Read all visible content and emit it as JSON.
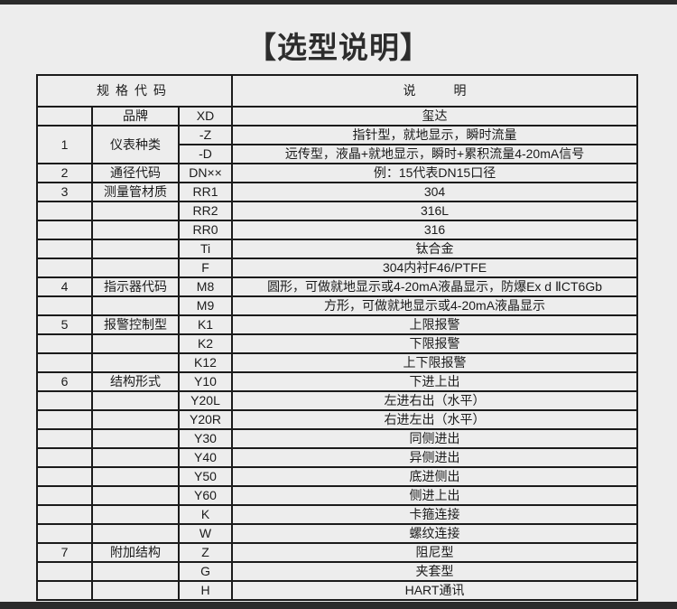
{
  "page": {
    "title": "【选型说明】"
  },
  "colors": {
    "background": "#ededed",
    "border": "#1b1b1b",
    "edge_bar": "#2b2b2b",
    "text": "#1b1b1b"
  },
  "table": {
    "header": {
      "spec_code": "规格代码",
      "description": "说　　　明"
    },
    "rows": [
      {
        "num": "",
        "cat": "品牌",
        "code": "XD",
        "desc": "玺达"
      },
      {
        "num": "1",
        "cat": "仪表种类",
        "code": "-Z",
        "desc": "指针型，就地显示，瞬时流量",
        "rowspan": 2
      },
      {
        "in_span": true,
        "code": "-D",
        "desc": "远传型，液晶+就地显示，瞬时+累积流量4-20mA信号"
      },
      {
        "num": "2",
        "cat": "通径代码",
        "code": "DN××",
        "desc": "例：15代表DN15口径"
      },
      {
        "num": "3",
        "cat": "测量管材质",
        "code": "RR1",
        "desc": "304"
      },
      {
        "num": "",
        "cat": "",
        "code": "RR2",
        "desc": "316L"
      },
      {
        "num": "",
        "cat": "",
        "code": "RR0",
        "desc": "316"
      },
      {
        "num": "",
        "cat": "",
        "code": "Ti",
        "desc": "钛合金"
      },
      {
        "num": "",
        "cat": "",
        "code": "F",
        "desc": "304内衬F46/PTFE"
      },
      {
        "num": "4",
        "cat": "指示器代码",
        "code": "M8",
        "desc": "圆形，可做就地显示或4-20mA液晶显示，防爆Ex d ⅡCT6Gb"
      },
      {
        "num": "",
        "cat": "",
        "code": "M9",
        "desc": "方形，可做就地显示或4-20mA液晶显示"
      },
      {
        "num": "5",
        "cat": "报警控制型",
        "code": "K1",
        "desc": "上限报警"
      },
      {
        "num": "",
        "cat": "",
        "code": "K2",
        "desc": "下限报警"
      },
      {
        "num": "",
        "cat": "",
        "code": "K12",
        "desc": "上下限报警"
      },
      {
        "num": "6",
        "cat": "结构形式",
        "code": "Y10",
        "desc": "下进上出"
      },
      {
        "num": "",
        "cat": "",
        "code": "Y20L",
        "desc": "左进右出（水平）"
      },
      {
        "num": "",
        "cat": "",
        "code": "Y20R",
        "desc": "右进左出（水平）"
      },
      {
        "num": "",
        "cat": "",
        "code": "Y30",
        "desc": "同侧进出"
      },
      {
        "num": "",
        "cat": "",
        "code": "Y40",
        "desc": "异侧进出"
      },
      {
        "num": "",
        "cat": "",
        "code": "Y50",
        "desc": "底进侧出"
      },
      {
        "num": "",
        "cat": "",
        "code": "Y60",
        "desc": "侧进上出"
      },
      {
        "num": "",
        "cat": "",
        "code": "K",
        "desc": "卡箍连接"
      },
      {
        "num": "",
        "cat": "",
        "code": "W",
        "desc": "螺纹连接"
      },
      {
        "num": "7",
        "cat": "附加结构",
        "code": "Z",
        "desc": "阻尼型"
      },
      {
        "num": "",
        "cat": "",
        "code": "G",
        "desc": "夹套型"
      },
      {
        "num": "",
        "cat": "",
        "code": "H",
        "desc": "HART通讯"
      }
    ]
  }
}
